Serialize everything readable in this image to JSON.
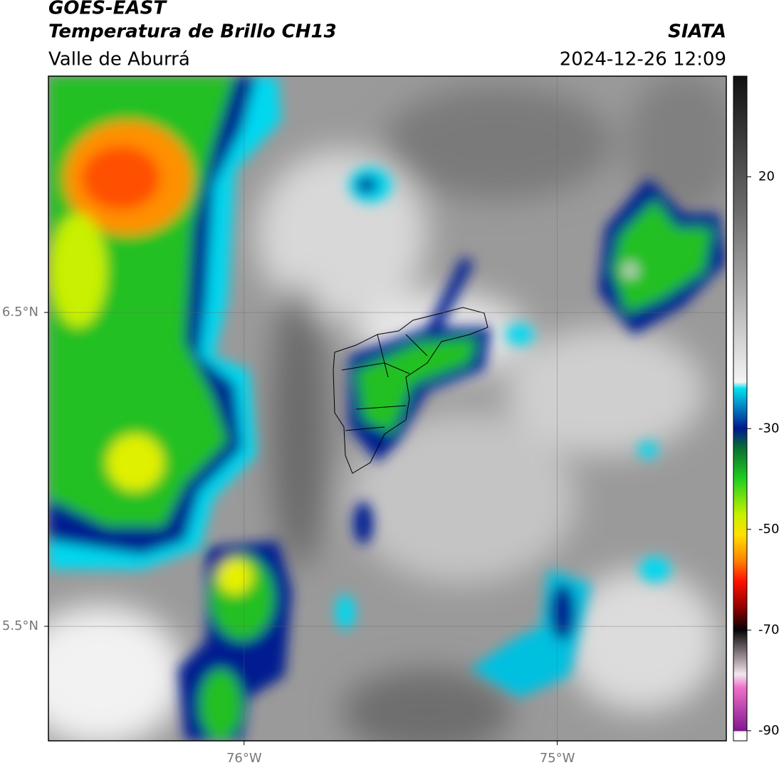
{
  "map": {
    "title": "GOES-EAST",
    "subtitle": "Temperatura de Brillo CH13",
    "region": "Valle de Aburrá",
    "source": "SIATA",
    "datetime": "2024-12-26 12:09",
    "xlim": [
      -76.625,
      -74.46
    ],
    "ylim": [
      5.135,
      7.253
    ],
    "xticks": [
      {
        "value": -76,
        "label": "76°W"
      },
      {
        "value": -75,
        "label": "75°W"
      }
    ],
    "yticks": [
      {
        "value": 6.5,
        "label": "6.5°N"
      },
      {
        "value": 5.5,
        "label": "5.5°N"
      }
    ],
    "colorbar": {
      "lim": [
        -92,
        40
      ],
      "ticks": [
        20,
        -30,
        -50,
        -70,
        -90
      ]
    }
  }
}
